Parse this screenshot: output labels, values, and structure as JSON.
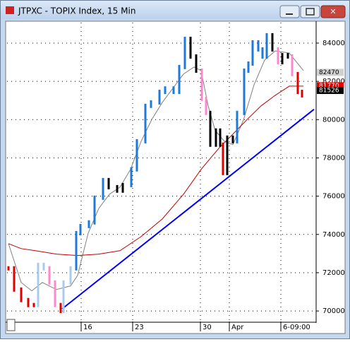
{
  "chart_data": {
    "type": "price",
    "title": "JTPXC - TOPIX Index, 15 Min",
    "x": [
      0.5,
      2.5,
      5,
      7.5,
      9.5,
      11,
      13,
      15,
      17,
      19,
      20,
      22.5,
      24.5,
      26,
      29,
      31,
      34,
      36,
      39,
      41,
      44,
      46,
      49,
      51,
      54,
      56,
      59,
      61,
      63,
      65,
      67,
      69,
      70.5,
      72,
      74,
      75.5,
      76.5,
      78,
      80,
      81.5,
      84,
      85.5,
      87,
      89,
      90.5,
      92,
      94,
      96,
      97.5,
      99.5,
      101,
      103,
      104.5
    ],
    "values": [
      72230,
      71120,
      70570,
      70310,
      70310,
      72410,
      72230,
      71490,
      70310,
      70000,
      71490,
      72230,
      74070,
      74440,
      74630,
      75920,
      76840,
      76470,
      76290,
      76580,
      77400,
      78870,
      80720,
      80900,
      81450,
      81630,
      81450,
      82750,
      84220,
      83300,
      82560,
      81090,
      80350,
      78690,
      79430,
      78690,
      77210,
      79060,
      78870,
      80350,
      82560,
      82930,
      84040,
      83670,
      83300,
      84410,
      83670,
      83000,
      83370,
      83300,
      82380,
      81450,
      81270
    ],
    "colors": [
      "#e00000",
      "#e00000",
      "#e00000",
      "#e00000",
      "#e00000",
      "#a8cce8",
      "#a8cce8",
      "#ff88cc",
      "#ff88cc",
      "#e00000",
      "#a8cce8",
      "#a8cce8",
      "#1e7ad8",
      "#1e7ad8",
      "#1e7ad8",
      "#1e7ad8",
      "#1e7ad8",
      "#000000",
      "#000000",
      "#000000",
      "#1e7ad8",
      "#1e7ad8",
      "#1e7ad8",
      "#1e7ad8",
      "#1e7ad8",
      "#1e7ad8",
      "#1e7ad8",
      "#1e7ad8",
      "#1e7ad8",
      "#000000",
      "#000000",
      "#ff88cc",
      "#ff88cc",
      "#000000",
      "#000000",
      "#000000",
      "#e00000",
      "#000000",
      "#000000",
      "#1e7ad8",
      "#1e7ad8",
      "#1e7ad8",
      "#1e7ad8",
      "#1e7ad8",
      "#1e7ad8",
      "#1e7ad8",
      "#000000",
      "#ff88cc",
      "#000000",
      "#000000",
      "#ff88cc",
      "#e00000",
      "#e00000"
    ],
    "averages": [
      {
        "color": "#808080",
        "x": [
          0.5,
          5,
          8.75,
          12.5,
          17.5,
          22.5,
          25,
          28.75,
          32.5,
          36.25,
          40,
          43.75,
          47.5,
          51.25,
          55,
          58.75,
          62.5,
          66.25,
          68.75,
          71.25,
          73.75,
          77,
          80,
          83.75,
          87.5,
          91.25,
          95,
          100,
          105
        ],
        "values": [
          73520,
          71490,
          71050,
          71490,
          71120,
          71310,
          71860,
          74070,
          75360,
          76100,
          76470,
          77400,
          78870,
          80000,
          80900,
          81640,
          82380,
          82750,
          82560,
          80720,
          79430,
          78870,
          78690,
          79980,
          81820,
          83110,
          83590,
          83480,
          82560
        ]
      },
      {
        "color": "#c00000",
        "x": [
          0.5,
          5,
          10,
          17.5,
          25,
          32.5,
          40,
          47.5,
          55,
          62.5,
          68.75,
          75,
          80,
          85,
          90,
          95,
          100,
          105
        ],
        "values": [
          73520,
          73260,
          73150,
          72970,
          72900,
          72970,
          73150,
          73890,
          74810,
          76100,
          77400,
          78500,
          79240,
          80000,
          80720,
          81270,
          81750,
          81750
        ]
      }
    ],
    "trendline": {
      "color": "#0000ff",
      "x": [
        19.5,
        108.75
      ],
      "values": [
        70110,
        80540
      ]
    },
    "price_tags": [
      {
        "value": 82470,
        "color": "#d0d0d0"
      },
      {
        "value": 81770,
        "color": "#e00000"
      },
      {
        "value": 81526,
        "color": "#000000"
      }
    ],
    "xlim": [
      0,
      109.5
    ],
    "ylim": [
      69450,
      85070
    ],
    "yticks": [
      70000,
      72000,
      74000,
      76000,
      78000,
      80000,
      82000,
      84000
    ],
    "xticks": [
      {
        "value": 26.25,
        "label": "16"
      },
      {
        "value": 44.5,
        "label": "23"
      },
      {
        "value": 68.5,
        "label": "30"
      },
      {
        "value": 78.75,
        "label": "Apr"
      },
      {
        "value": 97,
        "label": "6-09:00"
      }
    ],
    "grid": true
  }
}
